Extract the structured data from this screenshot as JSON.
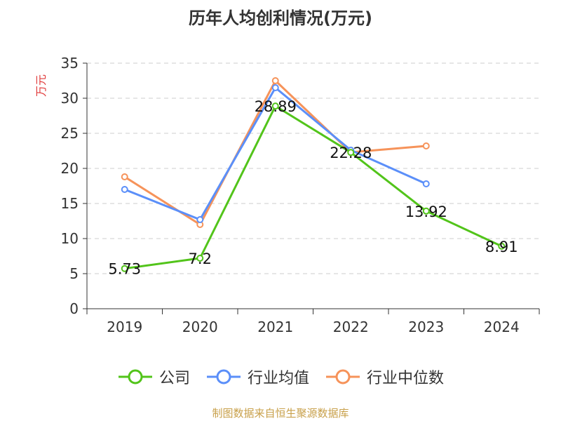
{
  "chart_data": {
    "type": "line",
    "title": "历年人均创利情况(万元)",
    "ylabel": "万元",
    "xlabel": "",
    "categories": [
      "2019",
      "2020",
      "2021",
      "2022",
      "2023",
      "2024"
    ],
    "ylim": [
      0,
      35
    ],
    "yticks": [
      0,
      5,
      10,
      15,
      20,
      25,
      30,
      35
    ],
    "grid": "horizontal dashed",
    "legend_position": "bottom",
    "series": [
      {
        "name": "公司",
        "color": "#52c41a",
        "values": [
          5.73,
          7.2,
          28.89,
          22.28,
          13.92,
          8.91
        ],
        "data_labels": [
          "5.73",
          "7.2",
          "28.89",
          "22.28",
          "13.92",
          "8.91"
        ]
      },
      {
        "name": "行业均值",
        "color": "#5b8ff9",
        "values": [
          17.0,
          12.7,
          31.5,
          22.6,
          17.8,
          null
        ]
      },
      {
        "name": "行业中位数",
        "color": "#f6935a",
        "values": [
          18.8,
          12.0,
          32.5,
          22.3,
          23.2,
          null
        ]
      }
    ]
  },
  "footer": {
    "source": "制图数据来自恒生聚源数据库"
  },
  "colors": {
    "axis": "#333333",
    "grid": "#cccccc",
    "ylabel": "#e03c3c",
    "source": "#c8a04a"
  }
}
